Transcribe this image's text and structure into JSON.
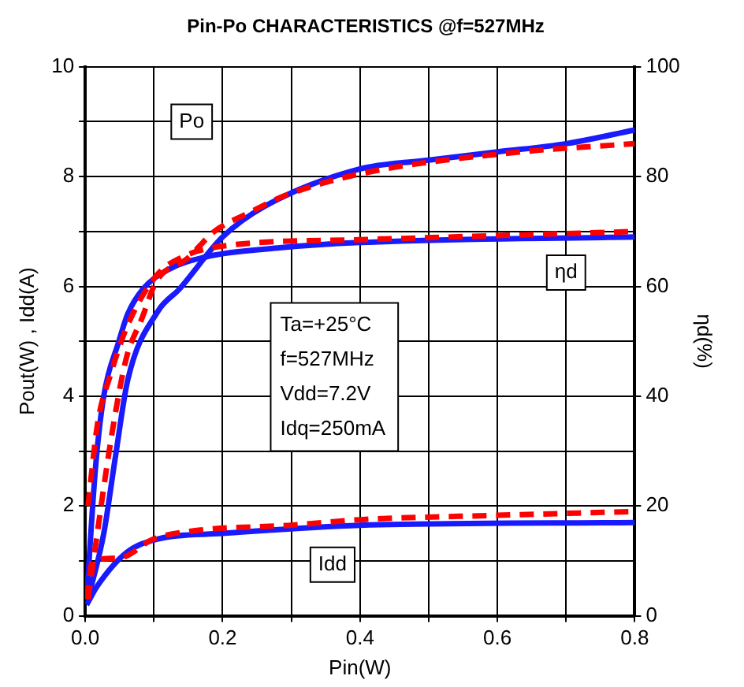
{
  "chart_data": {
    "type": "line",
    "title": "Pin-Po CHARACTERISTICS @f=527MHz",
    "xlabel": "Pin(W)",
    "ylabel": "Pout(W) , Idd(A)",
    "y2label": "ηd(%)",
    "xlim": [
      0,
      0.8
    ],
    "xticks": [
      {
        "value": 0,
        "label": "0.0"
      },
      {
        "value": 0.1,
        "label": null
      },
      {
        "value": 0.2,
        "label": "0.2"
      },
      {
        "value": 0.3,
        "label": null
      },
      {
        "value": 0.4,
        "label": "0.4"
      },
      {
        "value": 0.5,
        "label": null
      },
      {
        "value": 0.6,
        "label": "0.6"
      },
      {
        "value": 0.7,
        "label": null
      },
      {
        "value": 0.8,
        "label": "0.8"
      }
    ],
    "ylim": [
      0,
      10
    ],
    "yticks": [
      0,
      {
        "value": 1,
        "label": null
      },
      2,
      {
        "value": 3,
        "label": null
      },
      4,
      {
        "value": 5,
        "label": null
      },
      6,
      {
        "value": 7,
        "label": null
      },
      8,
      {
        "value": 9,
        "label": null
      },
      10
    ],
    "y2lim": [
      0,
      100
    ],
    "y2ticks": [
      0,
      20,
      40,
      60,
      80,
      100
    ],
    "grid": true,
    "legend": false,
    "marker": "none",
    "series": [
      {
        "color": "#ff0000",
        "line_style": "dashed",
        "x": [
          0.004,
          0.04,
          0.06,
          0.082,
          0.104,
          0.148,
          0.188,
          0.24,
          0.29,
          0.4,
          0.625,
          0.8
        ],
        "values": [
          0.3,
          3.4,
          4.7,
          5.4,
          6.1,
          6.5,
          7.0,
          7.35,
          7.65,
          8.05,
          8.44,
          8.6
        ]
      },
      {
        "color": "#ff0000",
        "line_style": "dashed",
        "axis": "y2",
        "x": [
          0.004,
          0.018,
          0.037,
          0.062,
          0.104,
          0.144,
          0.21,
          0.4,
          0.8
        ],
        "values": [
          20,
          35,
          44,
          53,
          62,
          65.5,
          67.5,
          68.5,
          70
        ]
      },
      {
        "color": "#ff0000",
        "line_style": "dashed",
        "x": [
          0.002,
          0.011,
          0.049,
          0.1,
          0.16,
          0.3,
          0.4,
          0.6,
          0.8
        ],
        "values": [
          0.3,
          1.0,
          1.05,
          1.4,
          1.55,
          1.65,
          1.75,
          1.83,
          1.9
        ]
      },
      {
        "color": "#1a1aff",
        "line_style": "solid",
        "x": [
          0.004,
          0.027,
          0.044,
          0.062,
          0.106,
          0.137,
          0.2,
          0.26,
          0.4,
          0.5,
          0.6,
          0.7,
          0.8
        ],
        "values": [
          0.3,
          1.5,
          2.9,
          4.3,
          5.55,
          5.95,
          6.9,
          7.45,
          8.14,
          8.3,
          8.45,
          8.6,
          8.85
        ]
      },
      {
        "color": "#1a1aff",
        "line_style": "solid",
        "axis": "y2",
        "x": [
          0.002,
          0.015,
          0.027,
          0.049,
          0.062,
          0.084,
          0.12,
          0.18,
          0.28,
          0.4,
          0.8
        ],
        "values": [
          3,
          27,
          40,
          50,
          55,
          59.5,
          63,
          65.5,
          67,
          68,
          69
        ]
      },
      {
        "color": "#1a1aff",
        "line_style": "solid",
        "x": [
          0.002,
          0.018,
          0.06,
          0.106,
          0.2,
          0.4,
          0.8
        ],
        "values": [
          0.2,
          0.55,
          1.15,
          1.4,
          1.5,
          1.65,
          1.7
        ]
      }
    ],
    "annotations": [
      {
        "text": "Po",
        "x": 0.155,
        "y": 9.0
      },
      {
        "text": "ηd",
        "x": 0.7,
        "y": 6.25
      },
      {
        "text": "Idd",
        "x": 0.36,
        "y": 0.93
      },
      "Ta=+25°C",
      "f=527MHz",
      "Vdd=7.2V",
      "Idq=250mA"
    ]
  }
}
